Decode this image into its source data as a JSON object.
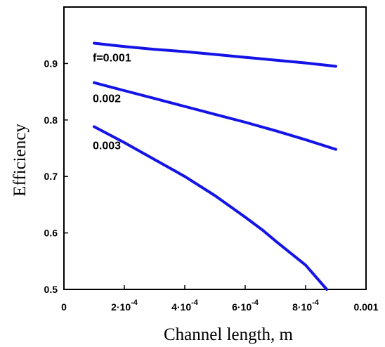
{
  "chart_data": {
    "type": "line",
    "xlabel": "Channel length, m",
    "ylabel": "Efficiency",
    "xlim": [
      0,
      0.001
    ],
    "ylim": [
      0.5,
      1.0
    ],
    "x_ticks": [
      {
        "value": 0,
        "label": "0"
      },
      {
        "value": 0.0002,
        "mantissa": "2",
        "exponent": "-4"
      },
      {
        "value": 0.0004,
        "mantissa": "4",
        "exponent": "-4"
      },
      {
        "value": 0.0006,
        "mantissa": "6",
        "exponent": "-4"
      },
      {
        "value": 0.0008,
        "mantissa": "8",
        "exponent": "-4"
      },
      {
        "value": 0.001,
        "label": "0.001"
      }
    ],
    "y_ticks": [
      {
        "value": 0.5,
        "label": "0.5"
      },
      {
        "value": 0.6,
        "label": "0.6"
      },
      {
        "value": 0.7,
        "label": "0.7"
      },
      {
        "value": 0.8,
        "label": "0.8"
      },
      {
        "value": 0.9,
        "label": "0.9"
      }
    ],
    "grid": false,
    "series": [
      {
        "name": "f=0.001",
        "color": "#1414e6",
        "x": [
          0.0001,
          0.0002,
          0.0003,
          0.0004,
          0.0005,
          0.0006,
          0.0007,
          0.0008,
          0.0009
        ],
        "y": [
          0.936,
          0.93,
          0.925,
          0.921,
          0.916,
          0.911,
          0.906,
          0.901,
          0.895
        ]
      },
      {
        "name": "0.002",
        "color": "#1414e6",
        "x": [
          0.0001,
          0.0002,
          0.0003,
          0.0004,
          0.0005,
          0.0006,
          0.0007,
          0.0008,
          0.0009
        ],
        "y": [
          0.866,
          0.852,
          0.838,
          0.824,
          0.81,
          0.796,
          0.781,
          0.765,
          0.748
        ]
      },
      {
        "name": "0.003",
        "color": "#1414e6",
        "x": [
          0.0001,
          0.0002,
          0.0003,
          0.0004,
          0.0005,
          0.0006,
          0.00066,
          0.0007,
          0.0008,
          0.00087
        ],
        "y": [
          0.788,
          0.76,
          0.73,
          0.7,
          0.666,
          0.628,
          0.604,
          0.586,
          0.543,
          0.5
        ]
      }
    ]
  }
}
